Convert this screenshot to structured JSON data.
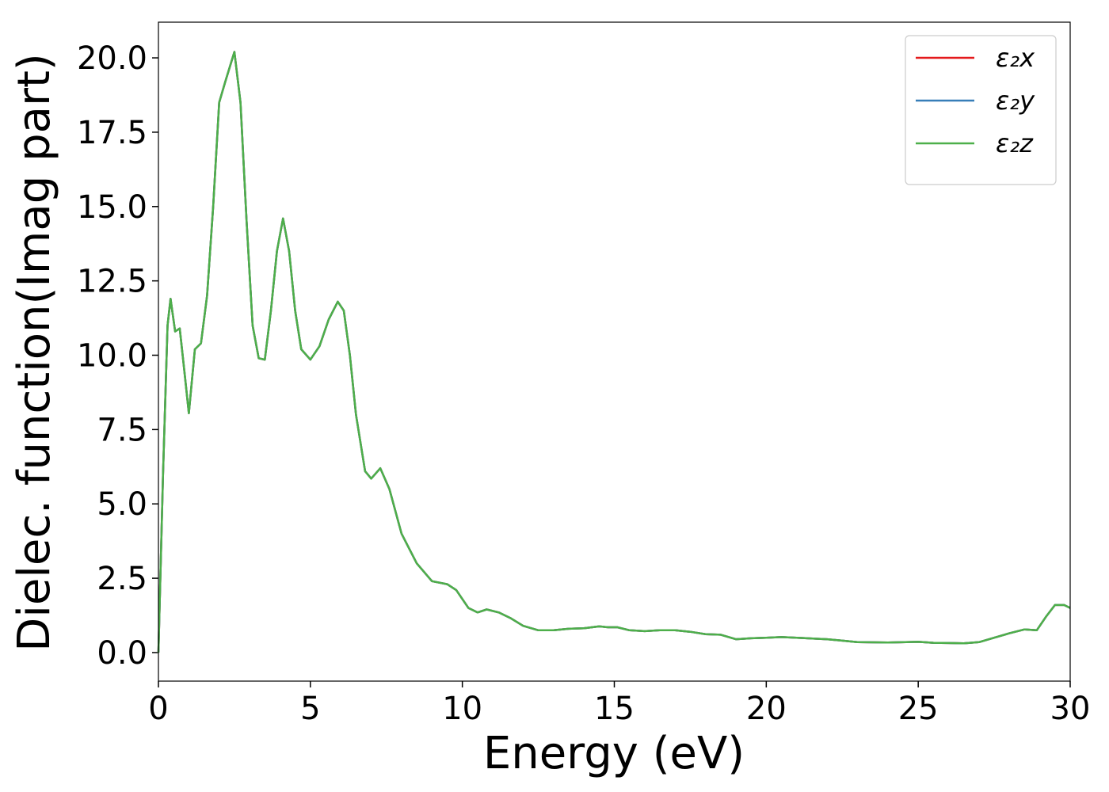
{
  "chart_data": {
    "type": "line",
    "xlabel": "Energy (eV)",
    "ylabel": "Dielec. function(Imag part)",
    "x": [
      0,
      0.15,
      0.3,
      0.4,
      0.55,
      0.7,
      0.85,
      1.0,
      1.2,
      1.4,
      1.6,
      1.8,
      2.0,
      2.2,
      2.5,
      2.7,
      2.9,
      3.1,
      3.3,
      3.5,
      3.7,
      3.9,
      4.1,
      4.3,
      4.5,
      4.7,
      5.0,
      5.3,
      5.6,
      5.9,
      6.1,
      6.3,
      6.5,
      6.8,
      7.0,
      7.3,
      7.6,
      8.0,
      8.5,
      9.0,
      9.5,
      9.8,
      10.2,
      10.5,
      10.8,
      11.2,
      11.6,
      12,
      12.5,
      13,
      13.5,
      14,
      14.5,
      14.8,
      15.1,
      15.5,
      16,
      16.5,
      17,
      17.5,
      18,
      18.5,
      19,
      19.5,
      20,
      20.5,
      21,
      22,
      22.5,
      23,
      24,
      25,
      25.5,
      26,
      26.5,
      27,
      27.5,
      28,
      28.5,
      28.9,
      29.2,
      29.5,
      29.8,
      30
    ],
    "series": [
      {
        "name": "ε₂x",
        "color": "#e41a1c",
        "values": [
          0,
          6,
          11,
          11.9,
          10.8,
          10.9,
          9.5,
          8.05,
          10.2,
          10.4,
          12,
          15,
          18.5,
          19.2,
          20.2,
          18.5,
          14.5,
          11,
          9.9,
          9.85,
          11.5,
          13.5,
          14.6,
          13.5,
          11.5,
          10.2,
          9.85,
          10.3,
          11.2,
          11.8,
          11.5,
          10,
          8,
          6.1,
          5.85,
          6.2,
          5.5,
          4,
          3,
          2.4,
          2.3,
          2.1,
          1.5,
          1.35,
          1.45,
          1.35,
          1.15,
          0.9,
          0.75,
          0.75,
          0.8,
          0.82,
          0.88,
          0.85,
          0.85,
          0.75,
          0.72,
          0.75,
          0.75,
          0.7,
          0.62,
          0.6,
          0.45,
          0.48,
          0.5,
          0.52,
          0.5,
          0.45,
          0.4,
          0.35,
          0.34,
          0.36,
          0.33,
          0.32,
          0.31,
          0.35,
          0.5,
          0.65,
          0.78,
          0.75,
          1.2,
          1.6,
          1.6,
          1.5
        ]
      },
      {
        "name": "ε₂y",
        "color": "#377eb8",
        "values": [
          0,
          6,
          11,
          11.9,
          10.8,
          10.9,
          9.5,
          8.05,
          10.2,
          10.4,
          12,
          15,
          18.5,
          19.2,
          20.2,
          18.5,
          14.5,
          11,
          9.9,
          9.85,
          11.5,
          13.5,
          14.6,
          13.5,
          11.5,
          10.2,
          9.85,
          10.3,
          11.2,
          11.8,
          11.5,
          10,
          8,
          6.1,
          5.85,
          6.2,
          5.5,
          4,
          3,
          2.4,
          2.3,
          2.1,
          1.5,
          1.35,
          1.45,
          1.35,
          1.15,
          0.9,
          0.75,
          0.75,
          0.8,
          0.82,
          0.88,
          0.85,
          0.85,
          0.75,
          0.72,
          0.75,
          0.75,
          0.7,
          0.62,
          0.6,
          0.45,
          0.48,
          0.5,
          0.52,
          0.5,
          0.45,
          0.4,
          0.35,
          0.34,
          0.36,
          0.33,
          0.32,
          0.31,
          0.35,
          0.5,
          0.65,
          0.78,
          0.75,
          1.2,
          1.6,
          1.6,
          1.5
        ]
      },
      {
        "name": "ε₂z",
        "color": "#4daf4a",
        "values": [
          0,
          6,
          11,
          11.9,
          10.8,
          10.9,
          9.5,
          8.05,
          10.2,
          10.4,
          12,
          15,
          18.5,
          19.2,
          20.2,
          18.5,
          14.5,
          11,
          9.9,
          9.85,
          11.5,
          13.5,
          14.6,
          13.5,
          11.5,
          10.2,
          9.85,
          10.3,
          11.2,
          11.8,
          11.5,
          10,
          8,
          6.1,
          5.85,
          6.2,
          5.5,
          4,
          3,
          2.4,
          2.3,
          2.1,
          1.5,
          1.35,
          1.45,
          1.35,
          1.15,
          0.9,
          0.75,
          0.75,
          0.8,
          0.82,
          0.88,
          0.85,
          0.85,
          0.75,
          0.72,
          0.75,
          0.75,
          0.7,
          0.62,
          0.6,
          0.45,
          0.48,
          0.5,
          0.52,
          0.5,
          0.45,
          0.4,
          0.35,
          0.34,
          0.36,
          0.33,
          0.32,
          0.31,
          0.35,
          0.5,
          0.65,
          0.78,
          0.75,
          1.2,
          1.6,
          1.6,
          1.5
        ]
      }
    ],
    "xlim": [
      0,
      30
    ],
    "xticks": [
      0,
      5,
      10,
      15,
      20,
      25,
      30
    ],
    "ylim": [
      -0.96,
      21.2
    ],
    "yticks": [
      {
        "value": 0,
        "label": "0.0"
      },
      2.5,
      {
        "value": 5,
        "label": "5.0"
      },
      7.5,
      {
        "value": 10,
        "label": "10.0"
      },
      12.5,
      {
        "value": 15,
        "label": "15.0"
      },
      17.5,
      {
        "value": 20,
        "label": "20.0"
      }
    ],
    "legend": "upper right"
  }
}
